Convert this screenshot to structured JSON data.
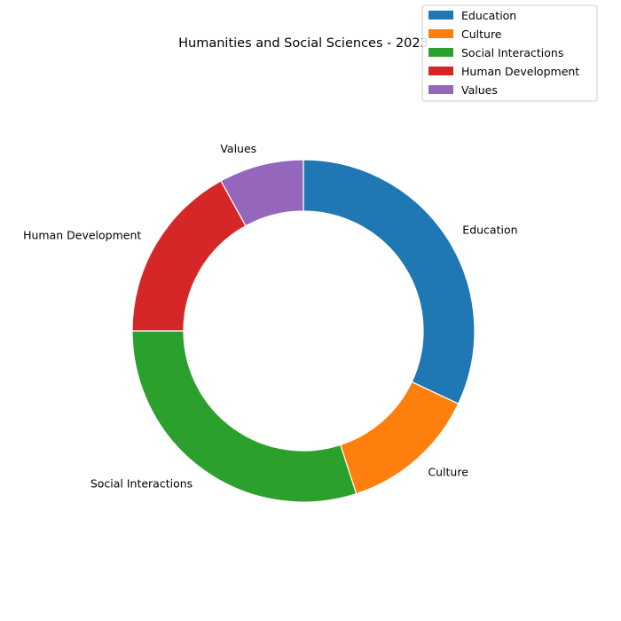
{
  "chart_data": {
    "type": "pie",
    "style": "donut",
    "title": "Humanities and Social Sciences - 2023",
    "categories": [
      "Education",
      "Culture",
      "Social Interactions",
      "Human Development",
      "Values"
    ],
    "values": [
      32,
      13,
      30,
      17,
      8
    ],
    "unit": "%",
    "colors": [
      "#1f77b4",
      "#ff7f0e",
      "#2ca02c",
      "#d62728",
      "#9467bd"
    ],
    "start_angle_deg": 90,
    "direction": "clockwise",
    "legend": {
      "placement": "top-right",
      "entries": [
        "Education",
        "Culture",
        "Social Interactions",
        "Human Development",
        "Values"
      ]
    }
  }
}
